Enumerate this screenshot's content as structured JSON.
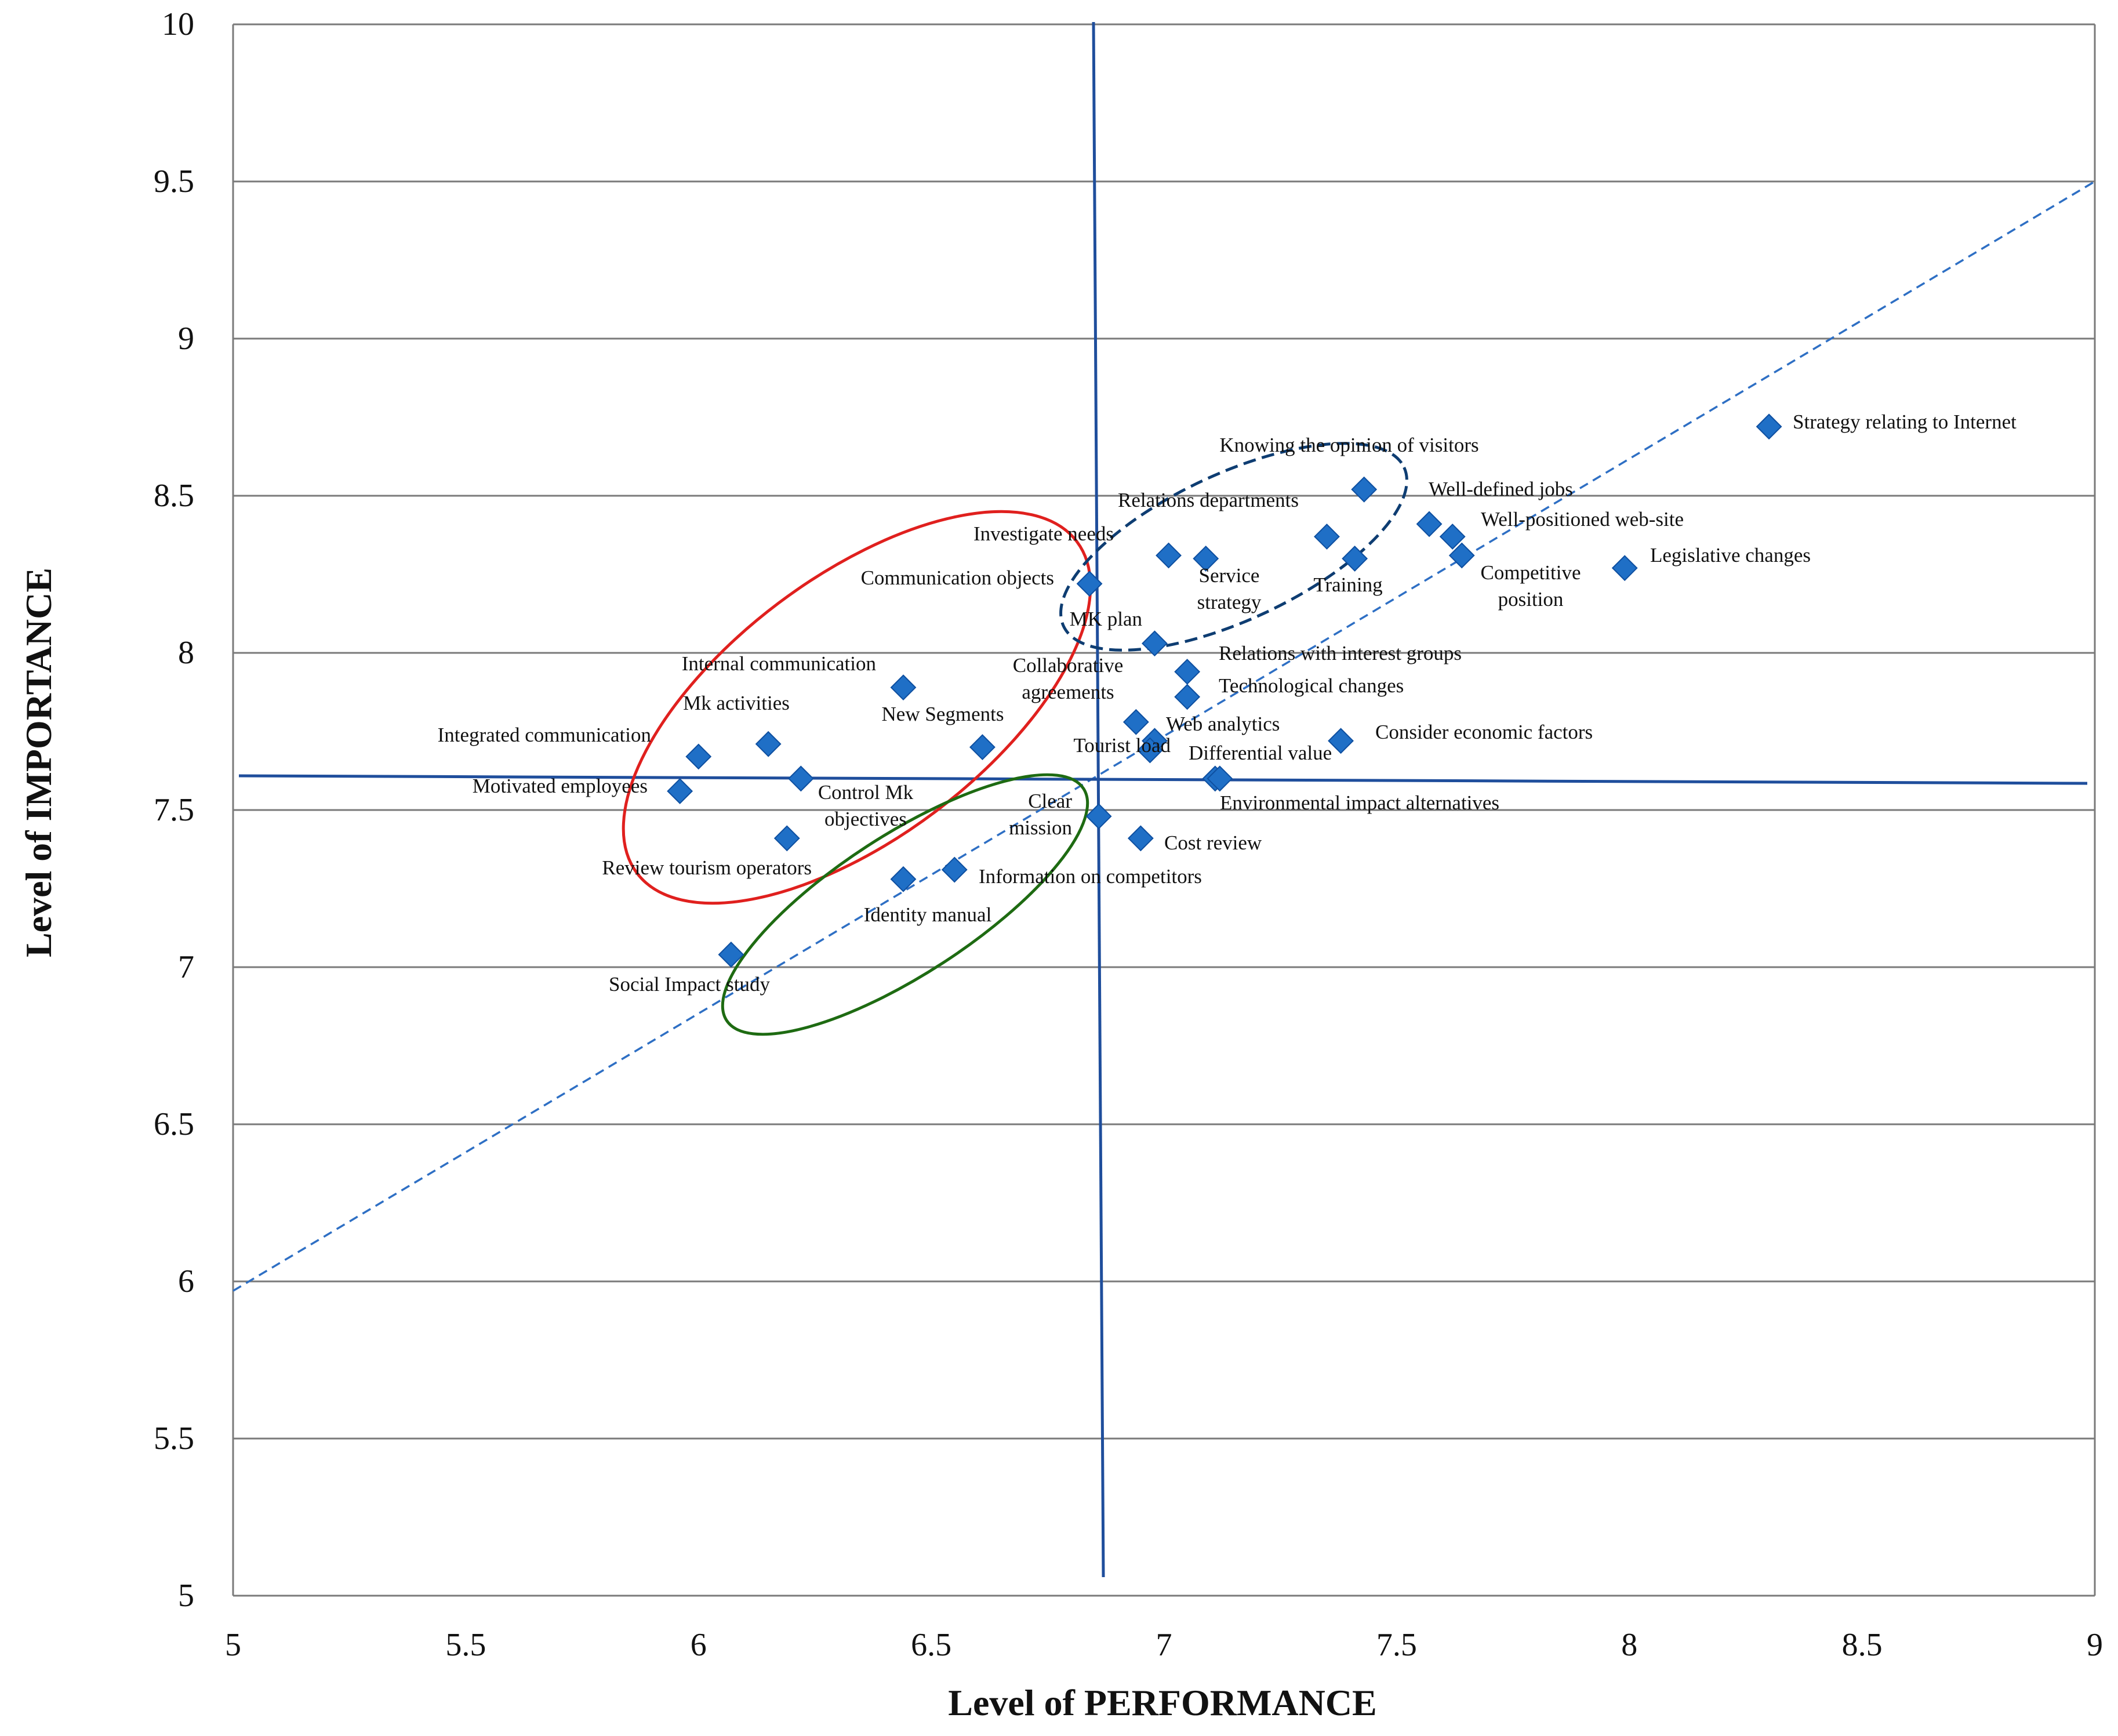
{
  "chart_data": {
    "type": "scatter",
    "title": "",
    "xlabel": "Level of PERFORMANCE",
    "ylabel": "Level of IMPORTANCE",
    "xlim": [
      5,
      9
    ],
    "ylim": [
      5,
      10
    ],
    "xticks": [
      "5",
      "5.5",
      "6",
      "6.5",
      "7",
      "7.5",
      "8",
      "8.5",
      "9"
    ],
    "yticks": [
      "5",
      "5.5",
      "6",
      "6.5",
      "7",
      "7.5",
      "8",
      "8.5",
      "9",
      "9.5",
      "10"
    ],
    "grid": "horizontal",
    "marker_color": "#1F6FC6",
    "quadrant_line_color": "#1F4E9C",
    "diagonal": {
      "from": [
        5,
        5.97
      ],
      "to": [
        9,
        9.5
      ],
      "style": "dashed"
    },
    "quadrant_lines": {
      "x": 6.86,
      "y": 7.58
    },
    "points": [
      {
        "label": "Strategy relating to Internet",
        "x": 8.3,
        "y": 8.72
      },
      {
        "label": "Knowing the opinion of visitors",
        "x": 7.43,
        "y": 8.52
      },
      {
        "label": "Well-defined jobs",
        "x": 7.57,
        "y": 8.41
      },
      {
        "label": "Well-positioned web-site",
        "x": 7.62,
        "y": 8.37
      },
      {
        "label": "Competitive position",
        "x": 7.64,
        "y": 8.31
      },
      {
        "label": "Legislative changes",
        "x": 7.99,
        "y": 8.27
      },
      {
        "label": "Relations departments",
        "x": 7.35,
        "y": 8.37
      },
      {
        "label": "Training",
        "x": 7.41,
        "y": 8.3
      },
      {
        "label": "Service strategy",
        "x": 7.09,
        "y": 8.3
      },
      {
        "label": "Investigate needs",
        "x": 7.01,
        "y": 8.31
      },
      {
        "label": "Communication objects",
        "x": 6.84,
        "y": 8.22
      },
      {
        "label": "MK plan",
        "x": 6.98,
        "y": 8.03
      },
      {
        "label": "Relations with interest groups",
        "x": 7.05,
        "y": 7.94
      },
      {
        "label": "Technological changes",
        "x": 7.05,
        "y": 7.86
      },
      {
        "label": "Collaborative agreements",
        "x": 6.94,
        "y": 7.78
      },
      {
        "label": "Web analytics",
        "x": 6.98,
        "y": 7.72
      },
      {
        "label": "Tourist load",
        "x": 6.97,
        "y": 7.69
      },
      {
        "label": "Differential value",
        "x": 7.11,
        "y": 7.6
      },
      {
        "label": "Consider economic factors",
        "x": 7.38,
        "y": 7.72
      },
      {
        "label": "Environmental impact alternatives",
        "x": 7.12,
        "y": 7.6
      },
      {
        "label": "Clear mission",
        "x": 6.86,
        "y": 7.48
      },
      {
        "label": "Cost review",
        "x": 6.95,
        "y": 7.41
      },
      {
        "label": "Information on competitors",
        "x": 6.55,
        "y": 7.31
      },
      {
        "label": "Identity manual",
        "x": 6.44,
        "y": 7.28
      },
      {
        "label": "Social Impact study",
        "x": 6.07,
        "y": 7.04
      },
      {
        "label": "Internal communication",
        "x": 6.44,
        "y": 7.89
      },
      {
        "label": "New Segments",
        "x": 6.61,
        "y": 7.7
      },
      {
        "label": "Mk activities",
        "x": 6.15,
        "y": 7.71
      },
      {
        "label": "Integrated communication",
        "x": 6.0,
        "y": 7.67
      },
      {
        "label": "Control Mk objectives",
        "x": 6.22,
        "y": 7.6
      },
      {
        "label": "Motivated employees",
        "x": 5.96,
        "y": 7.56
      },
      {
        "label": "Review tourism operators",
        "x": 6.19,
        "y": 7.41
      }
    ],
    "label_lines": {
      "Competitive position": [
        "Competitive",
        "position"
      ],
      "Service strategy": [
        "Service",
        "strategy"
      ],
      "Collaborative agreements": [
        "Collaborative",
        "agreements"
      ],
      "Clear mission": [
        "Clear",
        "mission"
      ],
      "Control Mk objectives": [
        "Control Mk",
        "objectives"
      ]
    },
    "ellipses": [
      {
        "group": "red",
        "color": "#E0201E",
        "style": "solid"
      },
      {
        "group": "green",
        "color": "#1E6B12",
        "style": "solid"
      },
      {
        "group": "navy",
        "color": "#0E3D72",
        "style": "dashed"
      }
    ]
  }
}
